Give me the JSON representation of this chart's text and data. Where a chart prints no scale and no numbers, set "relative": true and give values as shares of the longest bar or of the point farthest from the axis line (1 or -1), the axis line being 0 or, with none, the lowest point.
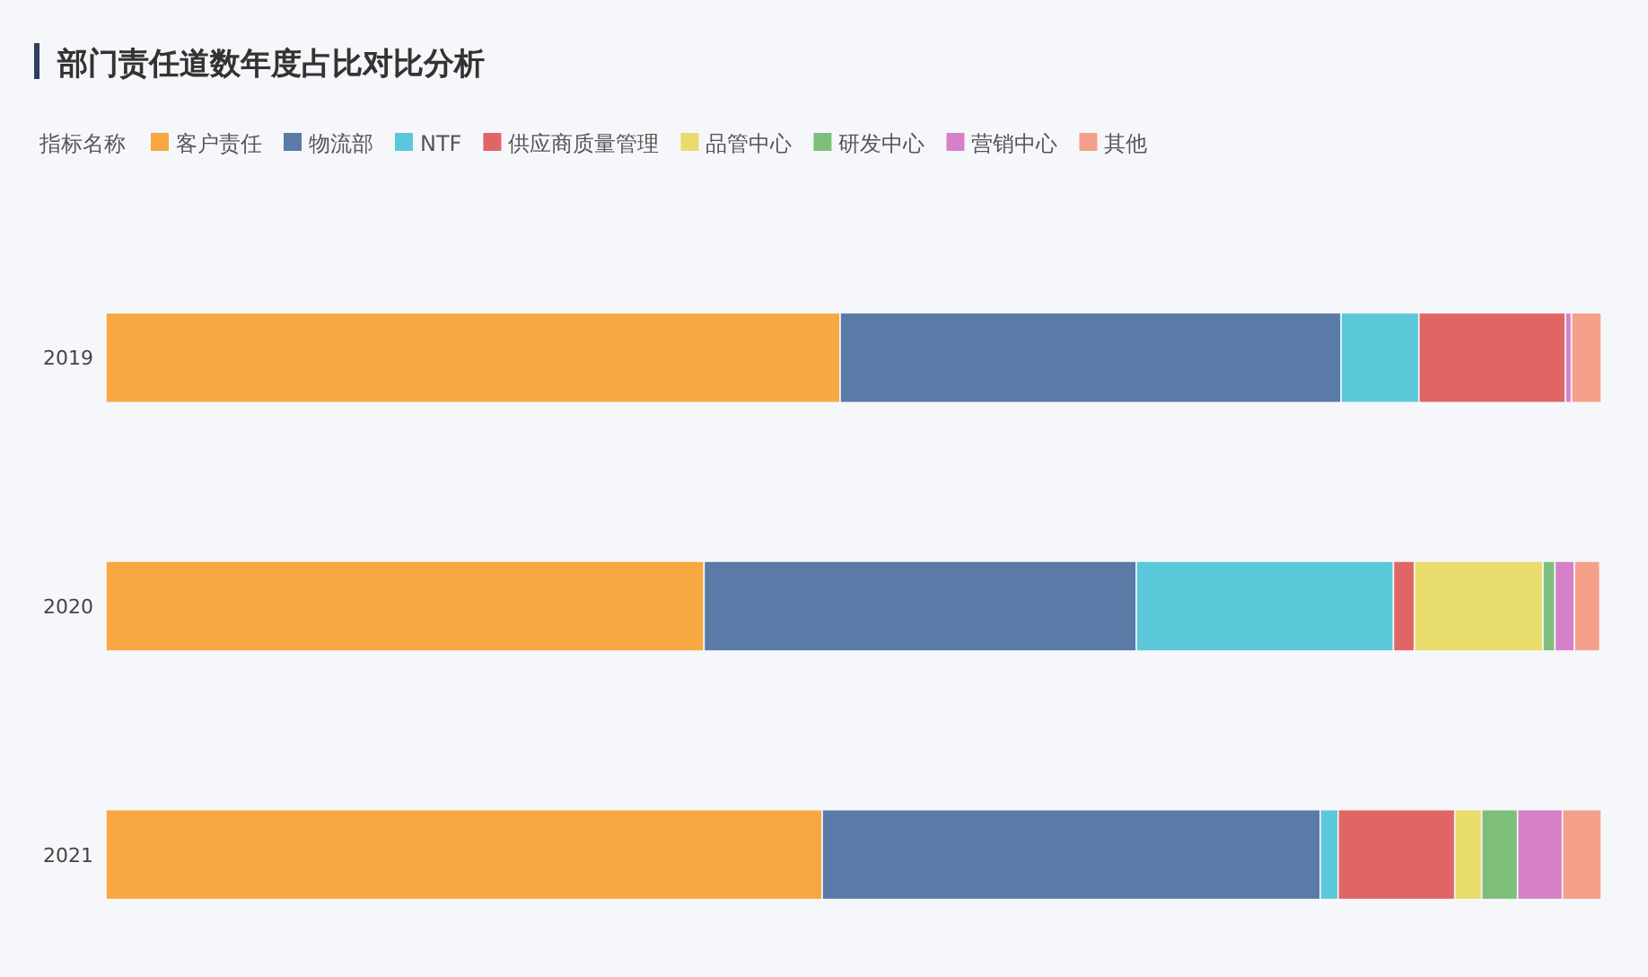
{
  "chart_data": {
    "type": "bar",
    "title": "部门责任道数年度占比对比分析",
    "legend_title": "指标名称",
    "orientation": "horizontal",
    "stacked": true,
    "relative": true,
    "legend": "top left",
    "categories": [
      "2019",
      "2020",
      "2021"
    ],
    "series": [
      {
        "name": "客户责任",
        "color": "#f7a840",
        "values": [
          0.491,
          0.4,
          0.479
        ]
      },
      {
        "name": "物流部",
        "color": "#5a7aa8",
        "values": [
          0.335,
          0.289,
          0.333
        ]
      },
      {
        "name": "NTF",
        "color": "#5bc8da",
        "values": [
          0.052,
          0.172,
          0.012
        ]
      },
      {
        "name": "供应商质量管理",
        "color": "#e06666",
        "values": [
          0.098,
          0.014,
          0.078
        ]
      },
      {
        "name": "品管中心",
        "color": "#e8dc6c",
        "values": [
          0,
          0.086,
          0.018
        ]
      },
      {
        "name": "研发中心",
        "color": "#7dbf7a",
        "values": [
          0,
          0.008,
          0.024
        ]
      },
      {
        "name": "营销中心",
        "color": "#d580c8",
        "values": [
          0.004,
          0.013,
          0.03
        ]
      },
      {
        "name": "其他",
        "color": "#f4a08a",
        "values": [
          0.02,
          0.017,
          0.026
        ]
      }
    ]
  }
}
